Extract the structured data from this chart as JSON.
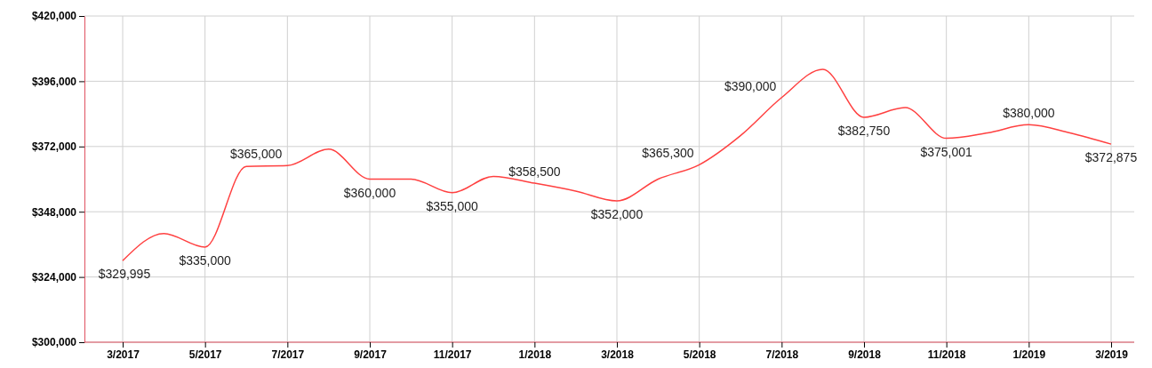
{
  "chart_data": {
    "type": "line",
    "categories": [
      "3/2017",
      null,
      "5/2017",
      null,
      "7/2017",
      null,
      "9/2017",
      null,
      "11/2017",
      null,
      "1/2018",
      null,
      "3/2018",
      null,
      "5/2018",
      null,
      "7/2018",
      null,
      "9/2018",
      null,
      "11/2018",
      null,
      "1/2019",
      null,
      "3/2019"
    ],
    "series": [
      {
        "color": "#ff4040",
        "values": [
          329995,
          340000,
          335000,
          364700,
          365000,
          371000,
          360000,
          360000,
          355000,
          361000,
          358500,
          355600,
          352000,
          360000,
          365300,
          376000,
          390000,
          400400,
          382750,
          386300,
          375001,
          377000,
          380000,
          377000,
          372875
        ],
        "value_labels": [
          "$329,995",
          null,
          "$335,000",
          null,
          "$365,000",
          null,
          "$360,000",
          null,
          "$355,000",
          null,
          "$358,500",
          null,
          "$352,000",
          null,
          "$365,300",
          null,
          "$390,000",
          null,
          "$382,750",
          null,
          "$375,001",
          null,
          "$380,000",
          null,
          "$372,875"
        ]
      }
    ],
    "ylim": [
      300000,
      420000
    ],
    "yticks": [
      {
        "value": 300000,
        "label": "$300,000"
      },
      {
        "value": 324000,
        "label": "$324,000"
      },
      {
        "value": 348000,
        "label": "$348,000"
      },
      {
        "value": 372000,
        "label": "$372,000"
      },
      {
        "value": 396000,
        "label": "$396,000"
      },
      {
        "value": 420000,
        "label": "$420,000"
      }
    ],
    "grid": true,
    "marker": "none",
    "line_style": "solid"
  }
}
